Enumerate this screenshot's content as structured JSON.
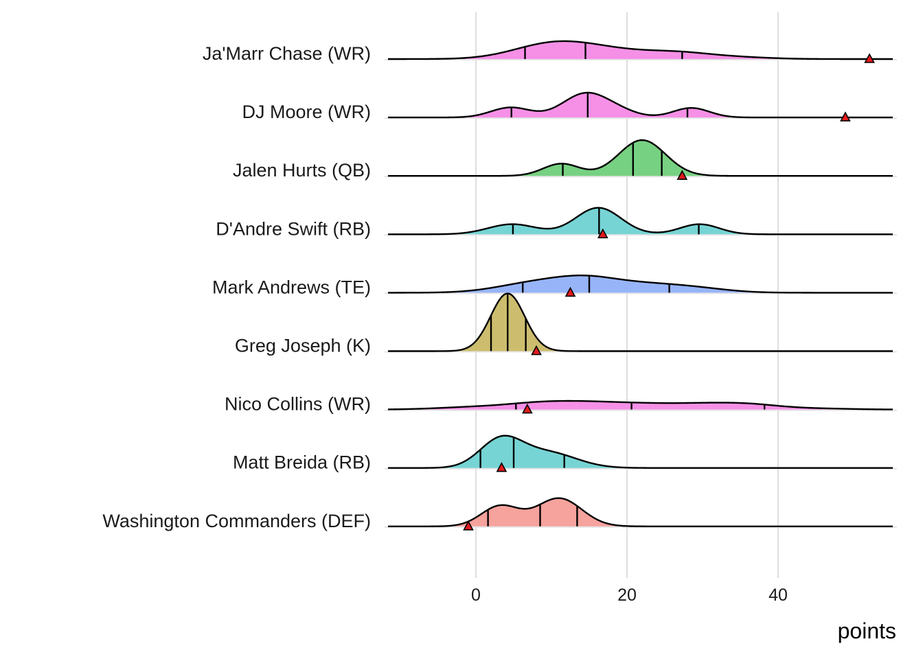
{
  "chart_data": {
    "type": "ridgeline",
    "title": "",
    "xlabel": "points",
    "ylabel": "",
    "xlim": [
      -11.6,
      55.2
    ],
    "x_ticks": [
      0,
      20,
      40
    ],
    "x_tick_labels": [
      "0",
      "20",
      "40"
    ],
    "grid": "vertical major lines",
    "legend": "none",
    "marker": {
      "shape": "triangle",
      "color": "#e31a1c",
      "meaning": "per-player marked value"
    },
    "series": [
      {
        "name": "Ja'Marr Chase (WR)",
        "color": "#f58ee6",
        "quantiles": [
          6.5,
          14.5,
          27.3
        ],
        "marker_value": 52.1,
        "density_components": [
          [
            9.8,
            5.0,
            1.0
          ],
          [
            16.5,
            5.0,
            0.55
          ],
          [
            26.5,
            5.0,
            0.48
          ],
          [
            36.0,
            4.0,
            0.08
          ]
        ]
      },
      {
        "name": "DJ Moore (WR)",
        "color": "#f58ee6",
        "quantiles": [
          4.7,
          14.8,
          28.0
        ],
        "marker_value": 48.9,
        "density_components": [
          [
            4.6,
            2.6,
            0.42
          ],
          [
            14.5,
            3.0,
            1.0
          ],
          [
            19.0,
            2.5,
            0.2
          ],
          [
            28.5,
            2.4,
            0.4
          ]
        ]
      },
      {
        "name": "Jalen Hurts (QB)",
        "color": "#74d080",
        "quantiles": [
          11.5,
          20.8,
          24.6
        ],
        "marker_value": 27.3,
        "density_components": [
          [
            11.3,
            2.4,
            0.34
          ],
          [
            22.0,
            3.1,
            1.0
          ]
        ]
      },
      {
        "name": "D'Andre Swift (RB)",
        "color": "#74d3d3",
        "quantiles": [
          4.9,
          16.3,
          29.5
        ],
        "marker_value": 16.8,
        "density_components": [
          [
            4.8,
            3.2,
            0.38
          ],
          [
            16.2,
            3.0,
            1.0
          ],
          [
            29.6,
            2.6,
            0.38
          ]
        ]
      },
      {
        "name": "Mark Andrews (TE)",
        "color": "#95b3f8",
        "quantiles": [
          6.2,
          15.0,
          25.6
        ],
        "marker_value": 12.5,
        "density_components": [
          [
            8.0,
            5.0,
            0.6
          ],
          [
            14.5,
            4.0,
            0.55
          ],
          [
            22.0,
            6.0,
            0.55
          ],
          [
            30.0,
            4.0,
            0.12
          ]
        ]
      },
      {
        "name": "Greg Joseph (K)",
        "color": "#cbbc6b",
        "quantiles": [
          2.0,
          4.2,
          6.6
        ],
        "marker_value": 8.0,
        "density_components": [
          [
            4.2,
            2.25,
            1.0
          ]
        ]
      },
      {
        "name": "Nico Collins (WR)",
        "color": "#f58ee6",
        "quantiles": [
          5.3,
          20.6,
          38.2
        ],
        "marker_value": 6.8,
        "density_components": [
          [
            0.0,
            5.0,
            0.35
          ],
          [
            8.5,
            4.5,
            0.8
          ],
          [
            15.0,
            4.5,
            0.75
          ],
          [
            22.0,
            4.5,
            0.62
          ],
          [
            30.0,
            4.5,
            0.7
          ],
          [
            36.5,
            4.0,
            0.6
          ],
          [
            45.0,
            4.5,
            0.15
          ]
        ]
      },
      {
        "name": "Matt Breida (RB)",
        "color": "#74d3d3",
        "quantiles": [
          0.6,
          5.0,
          11.7
        ],
        "marker_value": 3.4,
        "density_components": [
          [
            3.3,
            2.8,
            1.0
          ],
          [
            9.5,
            3.8,
            0.55
          ]
        ]
      },
      {
        "name": "Washington Commanders (DEF)",
        "color": "#f6a09b",
        "quantiles": [
          1.6,
          8.5,
          13.4
        ],
        "marker_value": -1.0,
        "density_components": [
          [
            3.2,
            2.5,
            0.72
          ],
          [
            11.0,
            3.0,
            1.0
          ]
        ]
      }
    ],
    "peak_heights_relative": [
      0.31,
      0.43,
      0.62,
      0.46,
      0.3,
      1.0,
      0.15,
      0.56,
      0.49
    ]
  }
}
